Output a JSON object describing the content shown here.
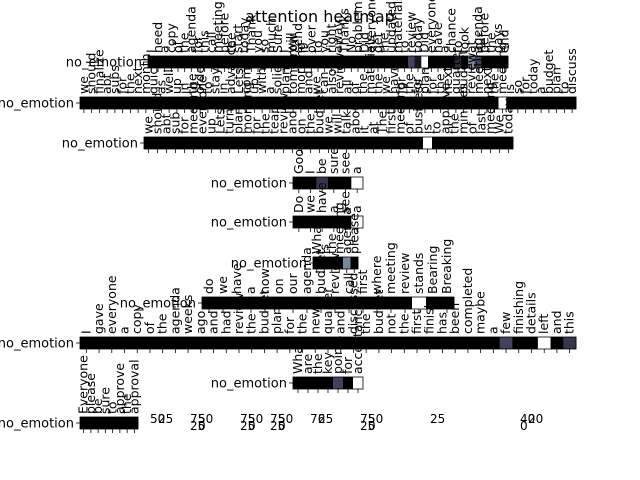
{
  "chart_data": {
    "type": "heatmap",
    "title": "attention heatmap",
    "colormap": "bone",
    "value_range": [
      0,
      1
    ],
    "rows": [
      {
        "label": "no_emotion",
        "tokens": [
          "I",
          "need",
          "a",
          "copy",
          "of",
          "the",
          "agenda",
          "for",
          "this",
          "call",
          "meeting",
          "before",
          "the",
          "start",
          "today",
          "Thank",
          "you",
          "so",
          "much",
          "Sure",
          "I",
          "will",
          "send",
          "it",
          "over",
          "to",
          "you",
          "right",
          "away",
          "Thanks",
          "No",
          "problem",
          "Did",
          "everyone",
          "get",
          "the",
          "updated",
          "materials",
          "to",
          "review",
          "today",
          "Did",
          "everyone",
          "have",
          "a",
          "chance",
          "to",
          "look",
          "at",
          "agenda",
          "before",
          "the",
          "days",
          "end"
        ],
        "weights": [
          0.0,
          0.0,
          0.0,
          0.0,
          0.0,
          0.0,
          0.0,
          0.0,
          0.0,
          0.0,
          0.0,
          0.0,
          0.0,
          0.0,
          0.0,
          0.0,
          0.0,
          0.0,
          0.0,
          0.0,
          0.0,
          0.0,
          0.0,
          0.0,
          0.0,
          0.0,
          0.0,
          0.0,
          0.0,
          0.0,
          0.0,
          0.0,
          0.0,
          0.0,
          0.0,
          0.0,
          0.0,
          0.0,
          0.0,
          0.3,
          0.1,
          1.0,
          0.0,
          0.0,
          0.0,
          0.0,
          0.2,
          0.0,
          0.55,
          0.3,
          0.0,
          0.0,
          0.0,
          0.0
        ]
      },
      {
        "label": "no_emotion",
        "tokens": [
          "we",
          "should",
          "finalize",
          "abt",
          "subs",
          "for",
          "the",
          "next",
          "month",
          "quick",
          "as",
          "well",
          "up",
          "in",
          "the",
          "order",
          "to",
          "stay",
          "in",
          "advance",
          "Lets",
          "come",
          "up",
          "with",
          "a",
          "solid",
          "plan",
          "tomorrow",
          "morning",
          "and",
          "we",
          "can",
          "also",
          "review",
          "all",
          "of",
          "the",
          "materials",
          "the",
          "we",
          "have",
          "for",
          "the",
          "for",
          "plan",
          "for",
          "the",
          "next",
          "quarter",
          "budget",
          "review",
          "meeting",
          "next",
          "the",
          "meeting",
          "is",
          "so",
          "for",
          "today",
          "a",
          "budget",
          "plan",
          "to",
          "discuss"
        ],
        "weights": [
          0.0,
          0.0,
          0.0,
          0.0,
          0.0,
          0.0,
          0.0,
          0.0,
          0.0,
          0.0,
          0.0,
          0.0,
          0.0,
          0.0,
          0.0,
          0.0,
          0.0,
          0.0,
          0.0,
          0.0,
          0.0,
          0.0,
          0.0,
          0.0,
          0.0,
          0.0,
          0.0,
          0.0,
          0.0,
          0.0,
          0.0,
          0.0,
          0.0,
          0.0,
          0.0,
          0.0,
          0.0,
          0.0,
          0.0,
          0.0,
          0.0,
          0.0,
          0.0,
          0.0,
          0.0,
          0.0,
          0.0,
          0.0,
          0.0,
          0.0,
          0.0,
          0.0,
          0.0,
          0.0,
          1.0,
          0.0,
          0.0,
          0.0,
          0.0,
          0.0,
          0.0,
          0.0,
          0.0,
          0.0
        ]
      },
      {
        "label": "no_emotion",
        "tokens": [
          "we",
          "should",
          "abt",
          "sub",
          "for",
          "meeting",
          "everyone",
          "up",
          "Lets",
          "turn",
          "plan",
          "morning",
          "for",
          "the",
          "team",
          "review",
          "and",
          "on",
          "the",
          "budget",
          "we",
          "will",
          "talk",
          "about",
          "it",
          "at",
          "The",
          "first",
          "meeting",
          "of",
          "business",
          "is",
          "to",
          "approve",
          "the",
          "minutes",
          "of",
          "last",
          "meeting",
          "We",
          "today"
        ],
        "weights": [
          0.0,
          0.0,
          0.0,
          0.0,
          0.0,
          0.0,
          0.0,
          0.0,
          0.0,
          0.0,
          0.0,
          0.0,
          0.0,
          0.0,
          0.0,
          0.0,
          0.0,
          0.0,
          0.0,
          0.0,
          0.0,
          0.0,
          0.0,
          0.0,
          0.0,
          0.0,
          0.0,
          0.0,
          0.0,
          0.0,
          0.0,
          1.0,
          0.0,
          0.0,
          0.0,
          0.0,
          0.0,
          0.0,
          0.0,
          0.0,
          0.0
        ]
      },
      {
        "label": "no_emotion",
        "tokens": [
          "Good",
          "I",
          "be",
          "sure",
          "see",
          "a"
        ],
        "weights": [
          0.0,
          0.0,
          0.25,
          0.0,
          0.0,
          1.0
        ]
      },
      {
        "label": "no_emotion",
        "tokens": [
          "Do",
          "we",
          "have",
          "a",
          "see",
          "a"
        ],
        "weights": [
          0.0,
          0.0,
          0.0,
          0.0,
          0.0,
          1.0
        ]
      },
      {
        "label": "no_emotion",
        "tokens": [
          "What",
          "is",
          "the",
          "meeting",
          "agenda",
          "please"
        ],
        "weights": [
          0.0,
          0.0,
          0.0,
          0.0,
          0.55,
          0.0
        ]
      },
      {
        "label": "no_emotion",
        "tokens": [
          "do",
          "we",
          "have",
          "a",
          "now",
          "on",
          "our",
          "agenda",
          "budget",
          "review",
          "call",
          "first",
          "where",
          "meeting",
          "review",
          "stands",
          "Bearing",
          "Breaking"
        ],
        "weights": [
          0.0,
          0.0,
          0.0,
          0.0,
          0.0,
          0.0,
          0.0,
          0.0,
          0.0,
          0.0,
          0.0,
          0.0,
          0.0,
          0.0,
          0.0,
          1.0,
          0.0,
          0.0
        ]
      },
      {
        "label": "no_emotion",
        "tokens": [
          "I",
          "gave",
          "everyone",
          "a",
          "copy",
          "of",
          "the",
          "agenda",
          "weeks",
          "ago",
          "and",
          "had",
          "review",
          "the",
          "budget",
          "plan",
          "for",
          "the",
          "new",
          "quarter",
          "and",
          "discussed",
          "the",
          "budget",
          "not",
          "the",
          "first",
          "finish",
          "has",
          "been",
          "completed",
          "maybe",
          "a",
          "few",
          "finishing",
          "details",
          "left",
          "and",
          "this"
        ],
        "weights": [
          0.0,
          0.0,
          0.0,
          0.0,
          0.0,
          0.0,
          0.0,
          0.0,
          0.0,
          0.0,
          0.0,
          0.0,
          0.0,
          0.0,
          0.0,
          0.0,
          0.0,
          0.0,
          0.0,
          0.0,
          0.0,
          0.0,
          0.0,
          0.0,
          0.0,
          0.0,
          0.0,
          0.0,
          0.0,
          0.0,
          0.0,
          0.0,
          0.0,
          0.3,
          0.0,
          0.0,
          1.0,
          0.0,
          0.25
        ]
      },
      {
        "label": "no_emotion",
        "tokens": [
          "What",
          "are",
          "the",
          "key",
          "points",
          "for",
          "acceptance"
        ],
        "weights": [
          0.0,
          0.0,
          0.0,
          0.0,
          0.3,
          0.0,
          1.0
        ]
      },
      {
        "label": "no_emotion",
        "tokens": [
          "Everyone",
          "please",
          "be",
          "sure",
          "to",
          "approve",
          "the",
          "approval"
        ],
        "weights": [
          0.0,
          0.0,
          0.0,
          0.0,
          0.0,
          0.0,
          0.0,
          0.0
        ]
      }
    ],
    "stray_axis_text": [
      {
        "text": "50",
        "group": 1
      },
      {
        "text": "25",
        "group": 1
      },
      {
        "text": "75",
        "group": 2
      },
      {
        "text": "50",
        "group": 2
      },
      {
        "text": "25",
        "group": 2
      },
      {
        "text": "0",
        "group": 2
      },
      {
        "text": "75",
        "group": 3
      },
      {
        "text": "50",
        "group": 3
      },
      {
        "text": "25",
        "group": 3
      },
      {
        "text": "0",
        "group": 3
      },
      {
        "text": "75",
        "group": 4
      },
      {
        "text": "50",
        "group": 4
      },
      {
        "text": "25",
        "group": 4
      },
      {
        "text": "0",
        "group": 4
      },
      {
        "text": "76",
        "group": 5
      },
      {
        "text": "25",
        "group": 5
      },
      {
        "text": "75",
        "group": 6
      },
      {
        "text": "50",
        "group": 6
      },
      {
        "text": "25",
        "group": 6
      },
      {
        "text": "0",
        "group": 6
      },
      {
        "text": "25",
        "group": 7
      },
      {
        "text": "40",
        "group": 8
      },
      {
        "text": "20",
        "group": 8
      },
      {
        "text": "0",
        "group": 8
      }
    ]
  }
}
